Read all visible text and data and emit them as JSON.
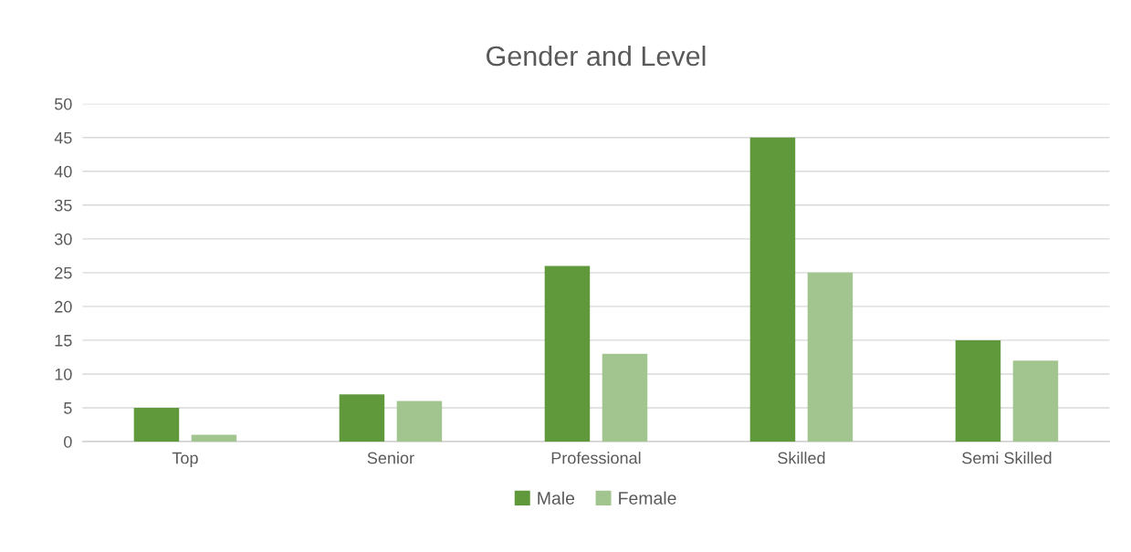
{
  "chart_data": {
    "type": "bar",
    "title": "Gender and Level",
    "categories": [
      "Top",
      "Senior",
      "Professional",
      "Skilled",
      "Semi Skilled"
    ],
    "series": [
      {
        "name": "Male",
        "color": "#5f993b",
        "values": [
          5,
          7,
          26,
          45,
          15
        ]
      },
      {
        "name": "Female",
        "color": "#a2c58f",
        "values": [
          1,
          6,
          13,
          25,
          12
        ]
      }
    ],
    "ylim": [
      0,
      50
    ],
    "yticks": [
      0,
      5,
      10,
      15,
      20,
      25,
      30,
      35,
      40,
      45,
      50
    ],
    "grid": "y",
    "legend": "bottom"
  }
}
